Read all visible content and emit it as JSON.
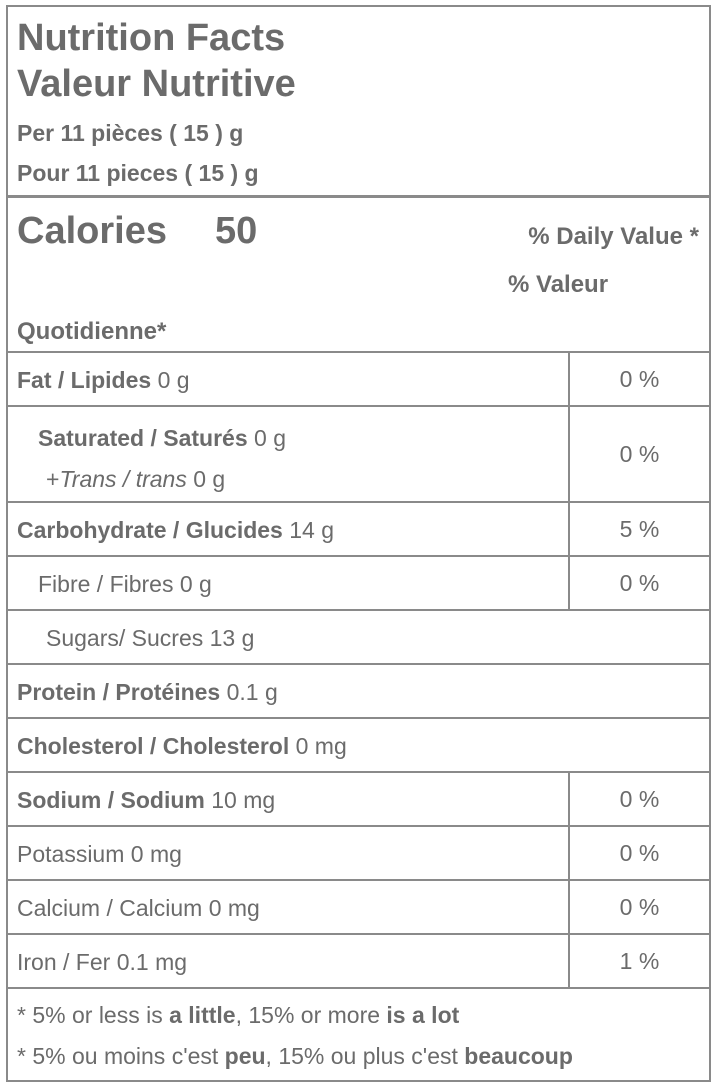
{
  "header": {
    "title_en": "Nutrition Facts",
    "title_fr": "Valeur Nutritive",
    "serving_en": "Per 11 pièces ( 15 ) g",
    "serving_fr": "Pour 11 pieces ( 15 ) g"
  },
  "calories": {
    "label": "Calories",
    "value": "50",
    "dv_line1": "% Daily Value *",
    "dv_line2": "% Valeur",
    "dv_line3": "Quotidienne*"
  },
  "nutrients": [
    {
      "name": "Fat / Lipides",
      "amount": "0 g",
      "dv": "0 %"
    },
    {
      "name": "Saturated / Saturés",
      "amount": "0 g",
      "dv": "0 %"
    },
    {
      "name_prefix": "+",
      "name": "Trans / trans",
      "amount": "0 g"
    },
    {
      "name": "Carbohydrate / Glucides",
      "amount": "14 g",
      "dv": "5 %"
    },
    {
      "name": "Fibre / Fibres",
      "amount": "0 g",
      "dv": "0 %"
    },
    {
      "name": "Sugars/ Sucres",
      "amount": "13 g"
    },
    {
      "name": "Protein / Protéines",
      "amount": "0.1 g"
    },
    {
      "name": "Cholesterol / Cholesterol",
      "amount": "0 mg"
    },
    {
      "name": "Sodium / Sodium",
      "amount": "10 mg",
      "dv": "0 %"
    },
    {
      "name": "Potassium",
      "amount": "0 mg",
      "dv": "0 %"
    },
    {
      "name": "Calcium / Calcium",
      "amount": "0 mg",
      "dv": "0 %"
    },
    {
      "name": "Iron / Fer",
      "amount": "0.1 mg",
      "dv": "1 %"
    }
  ],
  "footnote": {
    "en_pre": "* 5% or less is ",
    "en_b1": "a little",
    "en_mid": ", 15% or more ",
    "en_b2": "is a lot",
    "fr_pre": "* 5% ou moins c'est ",
    "fr_b1": "peu",
    "fr_mid": ", 15% ou plus c'est ",
    "fr_b2": "beaucoup"
  }
}
